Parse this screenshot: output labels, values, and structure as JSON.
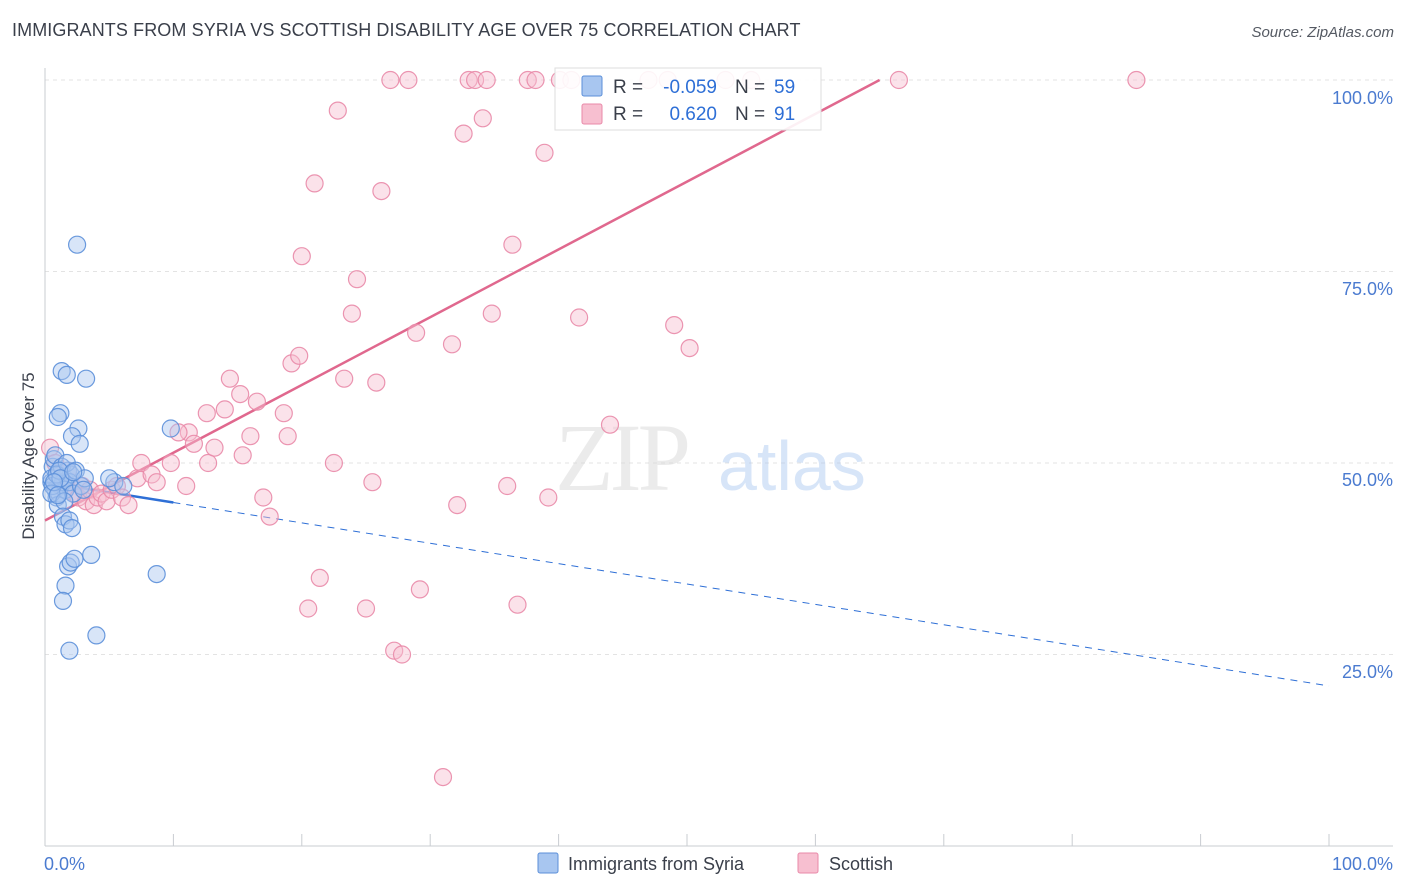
{
  "title": "IMMIGRANTS FROM SYRIA VS SCOTTISH DISABILITY AGE OVER 75 CORRELATION CHART",
  "source": "Source: ZipAtlas.com",
  "watermark": {
    "zip": "ZIP",
    "atlas": "atlas"
  },
  "legend_box": {
    "rows": [
      {
        "r_label": "R =",
        "r_value": "-0.059",
        "n_label": "N =",
        "n_value": "59"
      },
      {
        "r_label": "R =",
        "r_value": "0.620",
        "n_label": "N =",
        "n_value": "91"
      }
    ]
  },
  "bottom_legend": [
    {
      "label": "Immigrants from Syria"
    },
    {
      "label": "Scottish"
    }
  ],
  "colors": {
    "blue_fill": "#a8c6f0",
    "blue_stroke": "#5b8fd9",
    "blue_line": "#2e6fd6",
    "pink_fill": "#f7bfd0",
    "pink_stroke": "#e98aa9",
    "pink_line": "#e0688e",
    "tick_label": "#4b7bd0",
    "grid": "#e3e3e3"
  },
  "chart_data": {
    "type": "scatter",
    "title": "IMMIGRANTS FROM SYRIA VS SCOTTISH DISABILITY AGE OVER 75 CORRELATION CHART",
    "xlabel": "",
    "ylabel": "Disability Age Over 75",
    "xlim": [
      0,
      100
    ],
    "ylim": [
      0,
      105
    ],
    "x_tick_labels": [
      {
        "value": 0,
        "label": "0.0%"
      },
      {
        "value": 100,
        "label": "100.0%"
      }
    ],
    "y_tick_labels": [
      {
        "value": 25,
        "label": "25.0%"
      },
      {
        "value": 50,
        "label": "50.0%"
      },
      {
        "value": 75,
        "label": "75.0%"
      },
      {
        "value": 100,
        "label": "100.0%"
      }
    ],
    "series": [
      {
        "name": "Immigrants from Syria",
        "R": -0.059,
        "N": 59,
        "trend": {
          "x0": 0,
          "y0": 47.5,
          "x_solid_end": 10,
          "x1": 100,
          "y1": 20.9
        },
        "points": [
          [
            0.5,
            47.5
          ],
          [
            0.8,
            46.5
          ],
          [
            1.0,
            48.5
          ],
          [
            0.6,
            49.5
          ],
          [
            1.2,
            47.0
          ],
          [
            1.5,
            48.0
          ],
          [
            0.9,
            45.5
          ],
          [
            1.8,
            49.0
          ],
          [
            0.7,
            50.5
          ],
          [
            1.1,
            46.0
          ],
          [
            0.5,
            48.0
          ],
          [
            1.4,
            47.5
          ],
          [
            1.0,
            44.5
          ],
          [
            2.0,
            48.5
          ],
          [
            0.8,
            51.0
          ],
          [
            1.6,
            46.5
          ],
          [
            1.3,
            49.5
          ],
          [
            0.6,
            47.0
          ],
          [
            1.9,
            47.5
          ],
          [
            0.9,
            48.5
          ],
          [
            2.2,
            46.0
          ],
          [
            1.7,
            50.0
          ],
          [
            0.5,
            46.0
          ],
          [
            1.1,
            49.0
          ],
          [
            1.5,
            45.0
          ],
          [
            2.4,
            49.0
          ],
          [
            1.2,
            48.0
          ],
          [
            0.7,
            47.5
          ],
          [
            2.8,
            47.0
          ],
          [
            3.1,
            48.0
          ],
          [
            1.4,
            43.0
          ],
          [
            1.6,
            42.0
          ],
          [
            1.9,
            42.5
          ],
          [
            2.1,
            41.5
          ],
          [
            1.8,
            36.5
          ],
          [
            1.6,
            34.0
          ],
          [
            2.0,
            37.0
          ],
          [
            2.3,
            37.5
          ],
          [
            1.4,
            32.0
          ],
          [
            3.6,
            38.0
          ],
          [
            1.3,
            62.0
          ],
          [
            1.7,
            61.5
          ],
          [
            3.2,
            61.0
          ],
          [
            1.2,
            56.5
          ],
          [
            1.0,
            56.0
          ],
          [
            2.6,
            54.5
          ],
          [
            2.1,
            53.5
          ],
          [
            2.7,
            52.5
          ],
          [
            2.5,
            78.5
          ],
          [
            4.0,
            27.5
          ],
          [
            1.9,
            25.5
          ],
          [
            8.7,
            35.5
          ],
          [
            9.8,
            54.5
          ],
          [
            5.4,
            47.5
          ],
          [
            5.0,
            48.0
          ],
          [
            6.1,
            47.0
          ],
          [
            2.2,
            48.8
          ],
          [
            1.0,
            45.8
          ],
          [
            3.0,
            46.5
          ]
        ]
      },
      {
        "name": "Scottish",
        "R": 0.62,
        "N": 91,
        "trend": {
          "x0": 0,
          "y0": 42.5,
          "x1": 65,
          "y1": 100
        },
        "points": [
          [
            0.4,
            52.0
          ],
          [
            0.8,
            50.0
          ],
          [
            1.0,
            48.5
          ],
          [
            1.3,
            47.0
          ],
          [
            1.5,
            46.5
          ],
          [
            1.8,
            49.0
          ],
          [
            2.0,
            47.5
          ],
          [
            2.3,
            46.0
          ],
          [
            2.6,
            45.5
          ],
          [
            2.9,
            47.0
          ],
          [
            3.2,
            45.0
          ],
          [
            3.5,
            46.5
          ],
          [
            3.8,
            44.5
          ],
          [
            4.1,
            45.5
          ],
          [
            4.4,
            46.0
          ],
          [
            4.8,
            45.0
          ],
          [
            5.2,
            46.5
          ],
          [
            5.6,
            47.0
          ],
          [
            6.0,
            45.5
          ],
          [
            6.5,
            44.5
          ],
          [
            7.2,
            48.0
          ],
          [
            7.5,
            50.0
          ],
          [
            8.3,
            48.5
          ],
          [
            8.7,
            47.5
          ],
          [
            9.8,
            50.0
          ],
          [
            11.0,
            47.0
          ],
          [
            11.2,
            54.0
          ],
          [
            10.4,
            54.0
          ],
          [
            11.6,
            52.5
          ],
          [
            12.6,
            56.5
          ],
          [
            12.7,
            50.0
          ],
          [
            13.2,
            52.0
          ],
          [
            14.0,
            57.0
          ],
          [
            14.4,
            61.0
          ],
          [
            15.2,
            59.0
          ],
          [
            15.4,
            51.0
          ],
          [
            16.0,
            53.5
          ],
          [
            16.5,
            58.0
          ],
          [
            17.0,
            45.5
          ],
          [
            17.5,
            43.0
          ],
          [
            18.6,
            56.5
          ],
          [
            18.9,
            53.5
          ],
          [
            19.2,
            63.0
          ],
          [
            19.8,
            64.0
          ],
          [
            20.5,
            31.0
          ],
          [
            21.0,
            86.5
          ],
          [
            21.4,
            35.0
          ],
          [
            22.5,
            50.0
          ],
          [
            22.8,
            96.0
          ],
          [
            23.3,
            61.0
          ],
          [
            23.9,
            69.5
          ],
          [
            24.3,
            74.0
          ],
          [
            25.0,
            31.0
          ],
          [
            25.5,
            47.5
          ],
          [
            25.8,
            60.5
          ],
          [
            26.2,
            85.5
          ],
          [
            26.9,
            100.0
          ],
          [
            27.2,
            25.5
          ],
          [
            27.8,
            25.0
          ],
          [
            28.3,
            100.0
          ],
          [
            28.9,
            67.0
          ],
          [
            29.2,
            33.5
          ],
          [
            31.0,
            9.0
          ],
          [
            31.7,
            65.5
          ],
          [
            32.1,
            44.5
          ],
          [
            32.6,
            93.0
          ],
          [
            33.0,
            100.0
          ],
          [
            33.5,
            100.0
          ],
          [
            34.1,
            95.0
          ],
          [
            34.4,
            100.0
          ],
          [
            34.8,
            69.5
          ],
          [
            36.0,
            47.0
          ],
          [
            36.4,
            78.5
          ],
          [
            36.8,
            31.5
          ],
          [
            37.6,
            100.0
          ],
          [
            38.2,
            100.0
          ],
          [
            38.9,
            90.5
          ],
          [
            39.2,
            45.5
          ],
          [
            40.1,
            100.0
          ],
          [
            41.0,
            100.0
          ],
          [
            41.6,
            69.0
          ],
          [
            44.0,
            55.0
          ],
          [
            47.0,
            100.0
          ],
          [
            48.5,
            100.0
          ],
          [
            49.0,
            68.0
          ],
          [
            50.2,
            65.0
          ],
          [
            53.0,
            100.0
          ],
          [
            55.0,
            100.0
          ],
          [
            66.5,
            100.0
          ],
          [
            85.0,
            100.0
          ],
          [
            20.0,
            77.0
          ]
        ]
      }
    ]
  }
}
